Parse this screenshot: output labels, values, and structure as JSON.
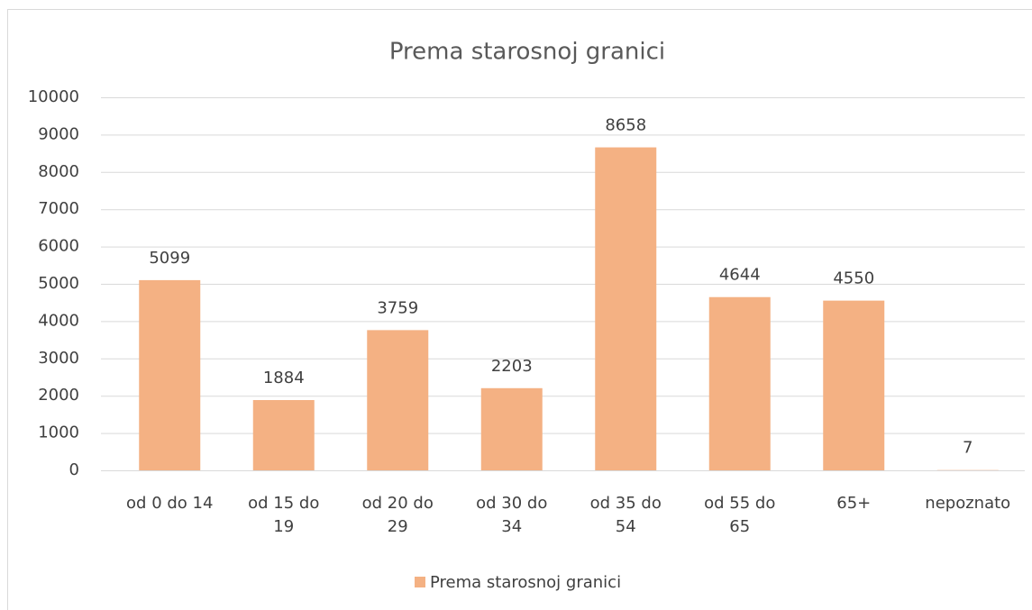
{
  "chart_data": {
    "type": "bar",
    "title": "Prema starosnoj granici",
    "categories": [
      "od 0 do 14",
      "od 15 do 19",
      "od 20 do 29",
      "od 30 do 34",
      "od 35 do 54",
      "od 55 do 65",
      "65+",
      "nepoznato"
    ],
    "series": [
      {
        "name": "Prema starosnoj granici",
        "color": "#f4b183",
        "values": [
          5099,
          1884,
          3759,
          2203,
          8658,
          4644,
          4550,
          7
        ]
      }
    ],
    "ylim": [
      0,
      10000
    ],
    "yticks": [
      0,
      1000,
      2000,
      3000,
      4000,
      5000,
      6000,
      7000,
      8000,
      9000,
      10000
    ],
    "grid": true,
    "legend": "bottom",
    "data_labels": true
  }
}
